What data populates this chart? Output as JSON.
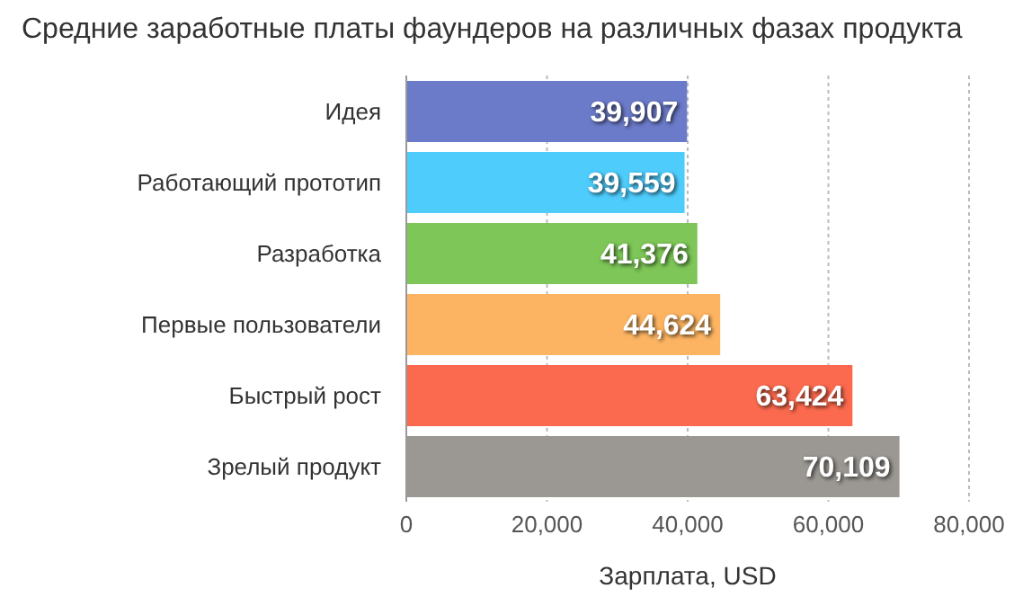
{
  "chart_data": {
    "type": "bar",
    "orientation": "horizontal",
    "title": "Средние заработные платы фаундеров на различных фазах продукта",
    "xlabel": "Зарплата, USD",
    "categories": [
      "Идея",
      "Работающий прототип",
      "Разработка",
      "Первые пользователи",
      "Быстрый рост",
      "Зрелый продукт"
    ],
    "values": [
      39907,
      39559,
      41376,
      44624,
      63424,
      70109
    ],
    "colors": [
      "#6c7bc9",
      "#4ecdfd",
      "#7dc657",
      "#fdb462",
      "#fb6a4e",
      "#9b9792"
    ],
    "xlim": [
      0,
      80000
    ],
    "xticks": [
      {
        "value": 0,
        "label": "0"
      },
      {
        "value": 20000,
        "label": "20,000"
      },
      {
        "value": 40000,
        "label": "40,000"
      },
      {
        "value": 60000,
        "label": "60,000"
      },
      {
        "value": 80000,
        "label": "80,000"
      }
    ],
    "value_labels": [
      "39,907",
      "39,559",
      "41,376",
      "44,624",
      "63,424",
      "70,109"
    ],
    "grid": "x"
  }
}
